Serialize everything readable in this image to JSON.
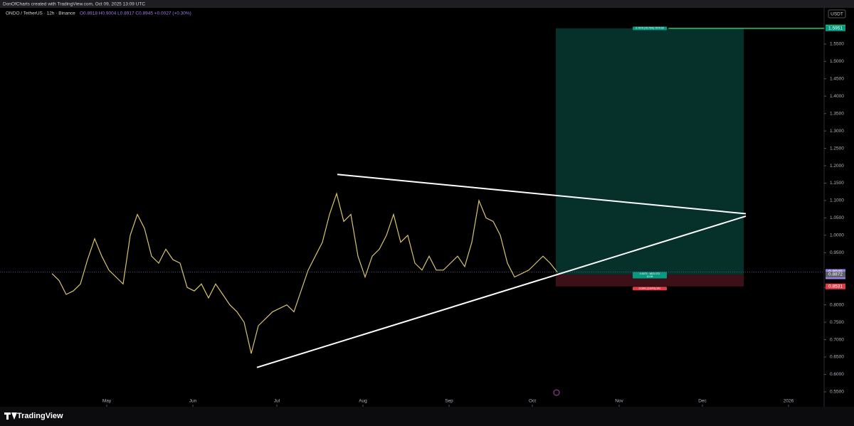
{
  "header": "DonOfCharts created with TradingView.com, Oct 09, 2025 13:09 UTC",
  "chart_data": {
    "type": "line",
    "title": "ONDO / TetherUS · 12h · Binance",
    "ohlc": "O0.8918 H0.9004 L0.8917 C0.8945 +0.0027 (+0.30%)",
    "currency": "USDT",
    "color": "#d8c46c",
    "values": [
      0.89,
      0.87,
      0.83,
      0.84,
      0.86,
      0.93,
      0.99,
      0.94,
      0.9,
      0.88,
      0.86,
      1.0,
      1.06,
      1.02,
      0.94,
      0.92,
      0.96,
      0.93,
      0.92,
      0.85,
      0.84,
      0.86,
      0.82,
      0.86,
      0.83,
      0.8,
      0.78,
      0.75,
      0.66,
      0.74,
      0.76,
      0.78,
      0.79,
      0.8,
      0.78,
      0.84,
      0.9,
      0.94,
      0.98,
      1.06,
      1.12,
      1.04,
      1.06,
      0.94,
      0.88,
      0.94,
      0.96,
      1.0,
      1.06,
      0.98,
      1.0,
      0.92,
      0.9,
      0.94,
      0.9,
      0.9,
      0.92,
      0.94,
      0.91,
      0.98,
      1.1,
      1.05,
      1.04,
      1.0,
      0.92,
      0.88,
      0.89,
      0.9,
      0.92,
      0.94,
      0.92,
      0.8945
    ],
    "xlim": [
      -7.3,
      108.5
    ],
    "xticks": [
      {
        "value": 7.7,
        "label": "May"
      },
      {
        "value": 19.8,
        "label": "Jun"
      },
      {
        "value": 31.6,
        "label": "Jul"
      },
      {
        "value": 43.7,
        "label": "Aug"
      },
      {
        "value": 55.8,
        "label": "Sep"
      },
      {
        "value": 67.5,
        "label": "Oct"
      },
      {
        "value": 79.7,
        "label": "Nov"
      },
      {
        "value": 91.4,
        "label": "Dec"
      },
      {
        "value": 103.5,
        "label": "2026"
      }
    ],
    "ylim": [
      0.511,
      1.652
    ],
    "yticks": [
      {
        "value": 1.55,
        "label": "1.5500"
      },
      {
        "value": 1.5,
        "label": "1.5000"
      },
      {
        "value": 1.45,
        "label": "1.4500"
      },
      {
        "value": 1.4,
        "label": "1.4000"
      },
      {
        "value": 1.35,
        "label": "1.3500"
      },
      {
        "value": 1.3,
        "label": "1.3000"
      },
      {
        "value": 1.25,
        "label": "1.2500"
      },
      {
        "value": 1.2,
        "label": "1.2000"
      },
      {
        "value": 1.15,
        "label": "1.1500"
      },
      {
        "value": 1.1,
        "label": "1.1000"
      },
      {
        "value": 1.05,
        "label": "1.0500"
      },
      {
        "value": 1,
        "label": "1.0000"
      },
      {
        "value": 0.95,
        "label": "0.9500"
      },
      {
        "value": 0.85,
        "label": "0.8500"
      },
      {
        "value": 0.8,
        "label": "0.8000"
      },
      {
        "value": 0.75,
        "label": "0.7500"
      },
      {
        "value": 0.7,
        "label": "0.7000"
      },
      {
        "value": 0.65,
        "label": "0.6500"
      },
      {
        "value": 0.6,
        "label": "0.6000"
      },
      {
        "value": 0.55,
        "label": "0.5500"
      }
    ],
    "trendlines": [
      {
        "x": [
          40.1,
          97.5
        ],
        "y": [
          1.175,
          1.062
        ]
      },
      {
        "x": [
          28.8,
          97.5
        ],
        "y": [
          0.62,
          1.055
        ]
      }
    ],
    "position": {
      "x": [
        70.8,
        97.2
      ],
      "entry": 0.8872,
      "target": 1.5951,
      "stop": 0.8531,
      "target_label": "0.7079 (79.79%) 7079.00",
      "entry_label": "0.0073 · 4821.072",
      "entry_sublabel": "10.09",
      "stop_label": "0.0341 (3.84%) 341"
    },
    "price_labels": [
      {
        "value": 1.5974,
        "label": "1.5974",
        "color": "#22c55e"
      },
      {
        "value": 1.5951,
        "label": "1.5951",
        "color": "#089981"
      },
      {
        "value": 0.8945,
        "label": "0.8945",
        "sublabel": "10:51:00",
        "color": "#9b7fe0"
      },
      {
        "value": 0.8872,
        "label": "0.8872",
        "color": "#5d606b"
      },
      {
        "value": 0.8531,
        "label": "0.8531",
        "color": "#e03c48"
      }
    ],
    "brand": "TradingView"
  }
}
